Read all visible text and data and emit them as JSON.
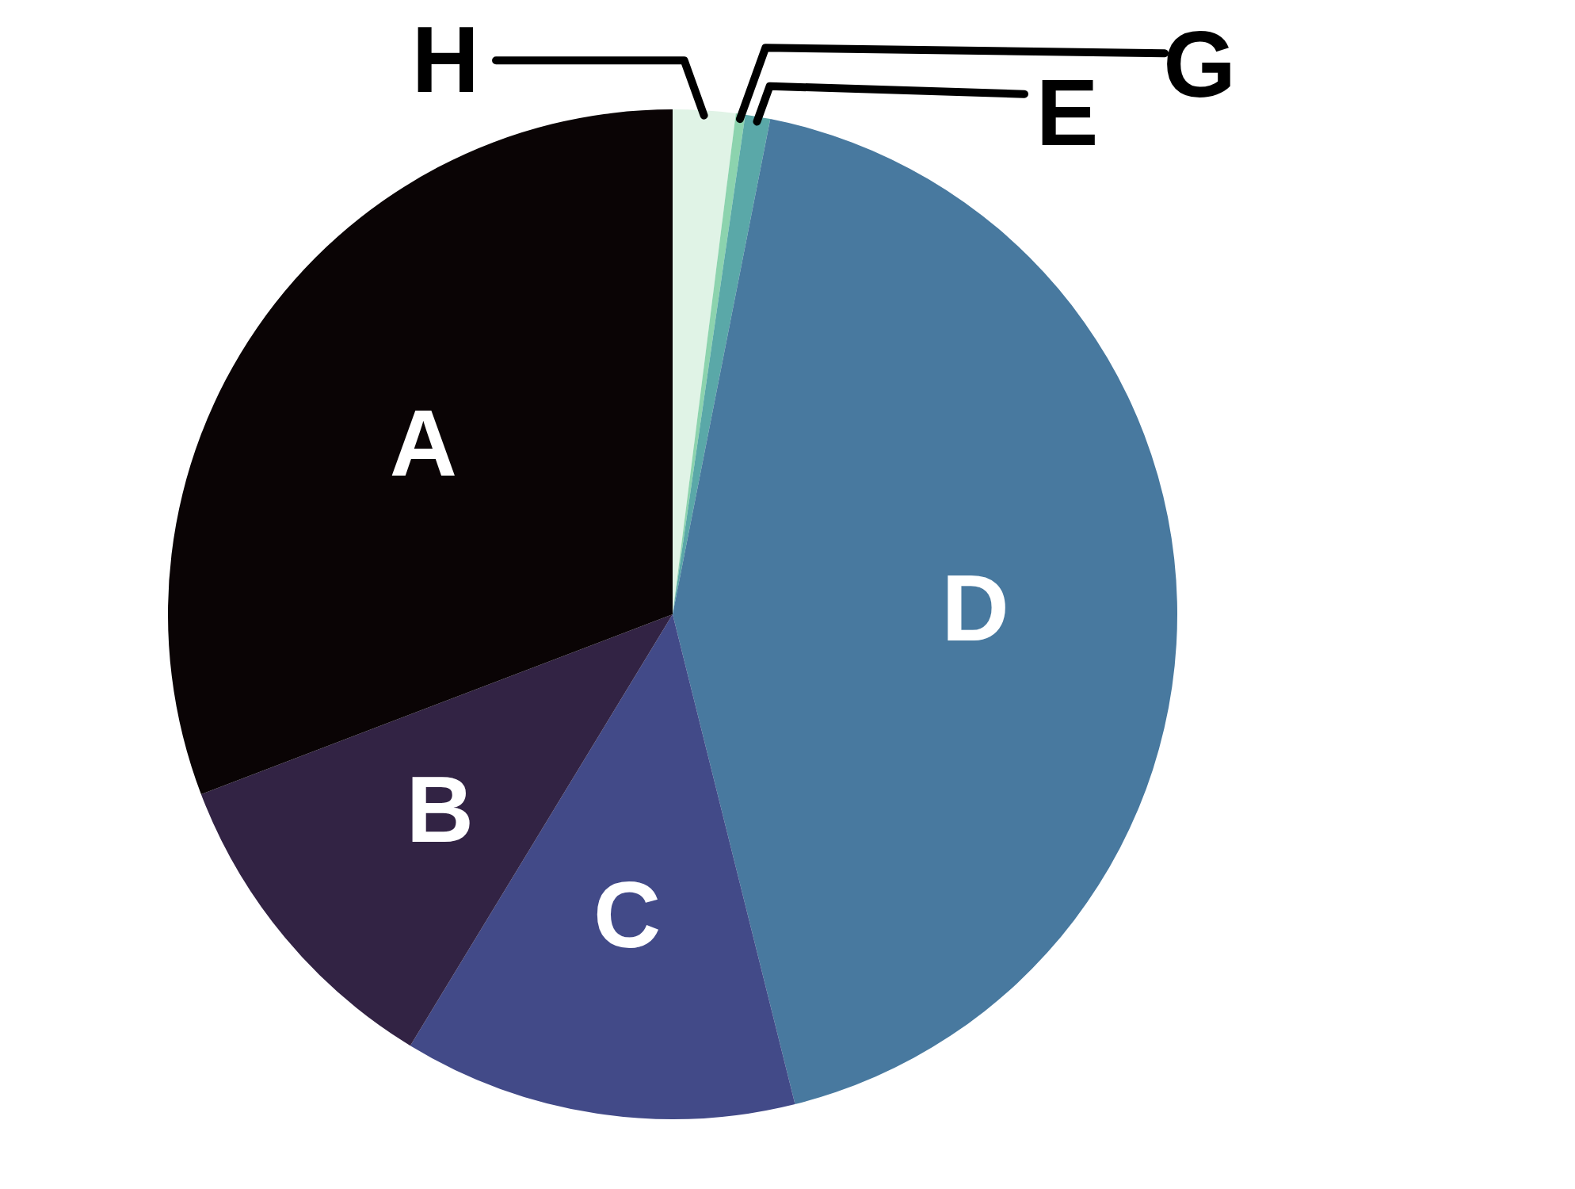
{
  "chart_data": {
    "type": "pie",
    "categories": [
      "A",
      "B",
      "C",
      "D",
      "E",
      "G",
      "H"
    ],
    "values": [
      30.8,
      10.5,
      12.6,
      43.0,
      0.8,
      0.3,
      2.0
    ],
    "colors": [
      "#0a0405",
      "#322344",
      "#424a88",
      "#48799f",
      "#5aa8a8",
      "#8cd3ae",
      "#e0f3e6"
    ]
  }
}
